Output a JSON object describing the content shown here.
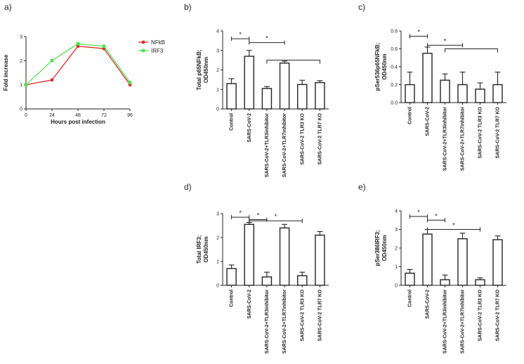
{
  "chart_data": [
    {
      "panel": "a)",
      "type": "line",
      "xlabel": "Hours post infection",
      "ylabel": "Fold increase",
      "x": [
        0,
        24,
        48,
        72,
        96
      ],
      "xticks": [
        "0",
        "24",
        "48",
        "72",
        "96"
      ],
      "yticks": [
        "0",
        "1",
        "2",
        "3"
      ],
      "xlim": [
        0,
        96
      ],
      "ylim": [
        0,
        3
      ],
      "legend": "right",
      "series": [
        {
          "name": "NFkB",
          "color": "#e02a2a",
          "values": [
            1.0,
            1.2,
            2.6,
            2.5,
            1.0
          ]
        },
        {
          "name": "IRF3",
          "color": "#4fe34f",
          "values": [
            1.0,
            2.0,
            2.7,
            2.6,
            1.1
          ]
        }
      ]
    },
    {
      "panel": "b)",
      "type": "bar",
      "ylabel": "Total p65NFkB;\nOD450nm",
      "ylim": [
        0,
        4
      ],
      "yticks": [
        "0",
        "1",
        "2",
        "3",
        "4"
      ],
      "categories": [
        "Control",
        "SARS-CoV-2",
        "SARS-CoV-2+TLR3inhibitor",
        "SARS-CoV-2+TLR7inhibitor",
        "SARS-CoV-2 TLR3 KO",
        "SARS-CoV-2 TLR7 KO"
      ],
      "values": [
        1.3,
        2.7,
        1.05,
        2.35,
        1.25,
        1.35
      ],
      "errors": [
        0.25,
        0.3,
        0.1,
        0.1,
        0.22,
        0.1
      ],
      "significance": [
        {
          "type": "bracket",
          "from": 0,
          "to": 1,
          "y": 3.6,
          "label": "*"
        },
        {
          "type": "bracket",
          "from": 1,
          "to": 3,
          "y": 3.4,
          "label": "*"
        },
        {
          "type": "span",
          "from": 2,
          "to": 5,
          "y": 2.5,
          "label": ""
        }
      ]
    },
    {
      "panel": "c)",
      "type": "bar",
      "ylabel": "pSer536p65NFkB;\nOD450nm",
      "ylim": [
        0,
        0.8
      ],
      "yticks": [
        "0.0",
        "0.2",
        "0.4",
        "0.6",
        "0.8"
      ],
      "categories": [
        "Control",
        "SARS-CoV-2",
        "SARS-CoV-2+TLR3inhibitor",
        "SARS-CoV-2+TLR7inhibitor",
        "SARS-CoV-2 TLR3 KO",
        "SARS-CoV-2 TLR7 KO"
      ],
      "values": [
        0.2,
        0.55,
        0.25,
        0.2,
        0.15,
        0.2
      ],
      "errors": [
        0.14,
        0.07,
        0.07,
        0.14,
        0.07,
        0.14
      ],
      "significance": [
        {
          "type": "bracket",
          "from": 0,
          "to": 1,
          "y": 0.74,
          "label": "*"
        },
        {
          "type": "bracket",
          "from": 1,
          "to": 3,
          "y": 0.64,
          "label": "*"
        },
        {
          "type": "span",
          "from": 2,
          "to": 5,
          "y": 0.6,
          "label": ""
        }
      ]
    },
    {
      "panel": "d)",
      "type": "bar",
      "ylabel": "Total IRF3;\nOD450nm",
      "ylim": [
        0,
        3
      ],
      "yticks": [
        "0",
        "1",
        "2",
        "3"
      ],
      "categories": [
        "Control",
        "SARS-CoV-2",
        "SARS-CoV-2+TLR3inhibitor",
        "SARS-CoV-2+TLR7inhibitor",
        "SARS-CoV-2 TLR3 KO",
        "SARS-CoV-2 TLR7 KO"
      ],
      "values": [
        0.7,
        2.55,
        0.35,
        2.4,
        0.4,
        2.1
      ],
      "errors": [
        0.15,
        0.08,
        0.2,
        0.15,
        0.15,
        0.15
      ],
      "significance": [
        {
          "type": "bracket",
          "from": 0,
          "to": 1,
          "y": 2.85,
          "label": "*"
        },
        {
          "type": "bracket",
          "from": 1,
          "to": 2,
          "y": 2.75,
          "label": "*"
        },
        {
          "type": "bracket",
          "from": 1,
          "to": 4,
          "y": 2.7,
          "label": "*"
        }
      ]
    },
    {
      "panel": "e)",
      "type": "bar",
      "ylabel": "pSer386IRF3;\nOD450nm",
      "ylim": [
        0,
        4
      ],
      "yticks": [
        "0",
        "1",
        "2",
        "3",
        "4"
      ],
      "categories": [
        "Control",
        "SARS-CoV-2",
        "SARS-CoV-2+TLR3inhibitor",
        "SARS-CoV-2+TLR7inhibitor",
        "SARS-CoV-2 TLR3 KO",
        "SARS-CoV-2 TLR7 KO"
      ],
      "values": [
        0.65,
        2.75,
        0.3,
        2.5,
        0.3,
        2.45
      ],
      "errors": [
        0.2,
        0.25,
        0.25,
        0.3,
        0.1,
        0.2
      ],
      "significance": [
        {
          "type": "bracket",
          "from": 0,
          "to": 1,
          "y": 3.7,
          "label": "*"
        },
        {
          "type": "bracket",
          "from": 1,
          "to": 2,
          "y": 3.5,
          "label": "*"
        },
        {
          "type": "bracket",
          "from": 1,
          "to": 4,
          "y": 3.0,
          "label": "*"
        }
      ]
    }
  ]
}
